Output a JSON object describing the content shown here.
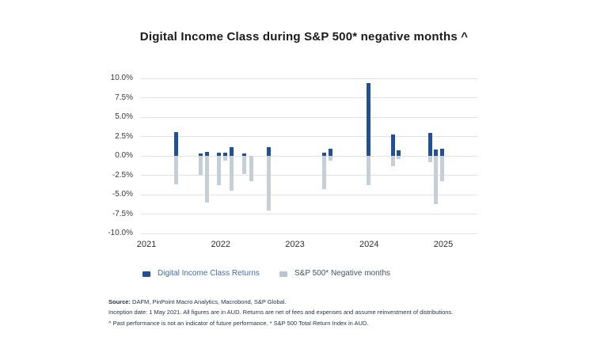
{
  "title": "Digital Income Class during S&P 500* negative months ^",
  "chart_data": {
    "type": "bar",
    "title": "Digital Income Class during S&P 500* negative months ^",
    "grid": true,
    "legend_position": "bottom",
    "x_axis": {
      "tick_labels": [
        "2021",
        "2022",
        "2023",
        "2024",
        "2025"
      ],
      "tick_values": [
        2021,
        2022,
        2023,
        2024,
        2025
      ],
      "min": 2020.925,
      "max": 2025.459
    },
    "y_axis": {
      "tick_labels": [
        "10.0%",
        "7.5%",
        "5.0%",
        "2.5%",
        "0.0%",
        "-2.5%",
        "-5.0%",
        "-7.5%",
        "-10.0%"
      ],
      "tick_values": [
        10,
        7.5,
        5,
        2.5,
        0,
        -2.5,
        -5,
        -7.5,
        -10
      ],
      "min": -10,
      "max": 10,
      "unit": "%"
    },
    "x": [
      2021.4,
      2021.73,
      2021.82,
      2021.98,
      2022.06,
      2022.15,
      2022.32,
      2022.41,
      2022.65,
      2023.39,
      2023.48,
      2023.99,
      2024.32,
      2024.4,
      2024.82,
      2024.9,
      2024.98
    ],
    "series": [
      {
        "name": "Digital Income Class Returns",
        "color": "#204f9e",
        "values": [
          3.1,
          0.3,
          0.5,
          0.4,
          0.4,
          1.1,
          0.3,
          0.0,
          1.1,
          0.45,
          0.9,
          9.4,
          2.8,
          0.75,
          3.0,
          0.85,
          0.95
        ]
      },
      {
        "name": "S&P 500* Negative months",
        "color": "#c5cfd8",
        "values": [
          -3.7,
          -2.4,
          -6.0,
          -3.8,
          -0.6,
          -4.5,
          -2.3,
          -3.3,
          -7.0,
          -4.3,
          -0.6,
          -3.8,
          -1.3,
          -0.45,
          -0.85,
          -6.2,
          -3.25
        ]
      }
    ]
  },
  "legend": {
    "items": [
      {
        "label": "Digital Income Class Returns",
        "swatch_color": "#204f9e",
        "text_color": "#3f6cc0"
      },
      {
        "label": "S&P 500* Negative months",
        "swatch_color": "#b9c5ce",
        "text_color": "#44546a"
      }
    ]
  },
  "footer": {
    "source_label": "Source:",
    "source_rest": " DAFM, PinPoint Macro Analytics, Macrobond, S&P Global.",
    "line2": "Inception date: 1 May 2021. All figures are in AUD. Returns are net of fees and expenses and assume reinvestment of distributions.",
    "line3": "^ Past performance is not an indicator of future performance. * S&P 500 Total Return Index in AUD."
  }
}
